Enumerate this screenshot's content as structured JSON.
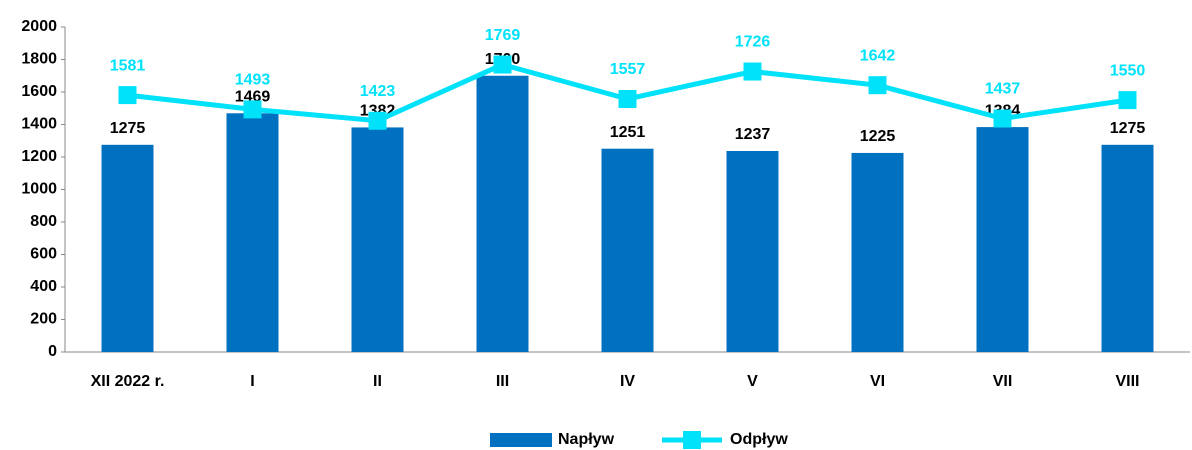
{
  "chart_data": {
    "type": "bar",
    "categories": [
      "XII 2022 r.",
      "I",
      "II",
      "III",
      "IV",
      "V",
      "VI",
      "VII",
      "VIII"
    ],
    "series": [
      {
        "name": "Napływ",
        "type": "bar",
        "color": "#0070c0",
        "values": [
          1275,
          1469,
          1382,
          1700,
          1251,
          1237,
          1225,
          1384,
          1275
        ]
      },
      {
        "name": "Odpływ",
        "type": "line",
        "color": "#00e1fa",
        "values": [
          1581,
          1493,
          1423,
          1769,
          1557,
          1726,
          1642,
          1437,
          1550
        ]
      }
    ],
    "ylim": [
      0,
      2000
    ],
    "yticks": [
      0,
      200,
      400,
      600,
      800,
      1000,
      1200,
      1400,
      1600,
      1800,
      2000
    ],
    "grid": false,
    "legend": "bottom"
  }
}
